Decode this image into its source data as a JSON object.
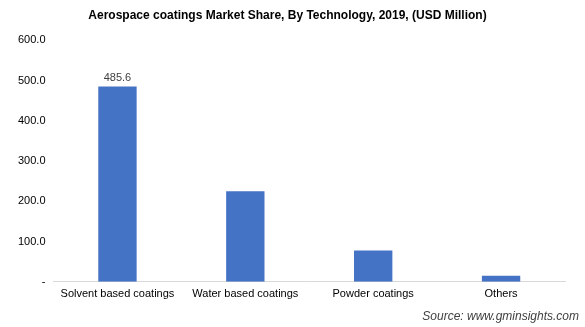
{
  "chart_data": {
    "type": "bar",
    "title": "Aerospace coatings Market Share, By Technology, 2019, (USD Million)",
    "categories": [
      "Solvent based coatings",
      "Water based coatings",
      "Powder coatings",
      "Others"
    ],
    "values": [
      485.6,
      225,
      78,
      15
    ],
    "value_labels": [
      "485.6",
      null,
      null,
      null
    ],
    "color": "#4472c4",
    "ylim": [
      0,
      600
    ],
    "yticks": [
      {
        "value": 0,
        "label": "-"
      },
      {
        "value": 100,
        "label": "100.0"
      },
      {
        "value": 200,
        "label": "200.0"
      },
      {
        "value": 300,
        "label": "300.0"
      },
      {
        "value": 400,
        "label": "400.0"
      },
      {
        "value": 500,
        "label": "500.0"
      },
      {
        "value": 600,
        "label": "600.0"
      }
    ],
    "grid": false,
    "source": "Source: www.gminsights.com"
  }
}
